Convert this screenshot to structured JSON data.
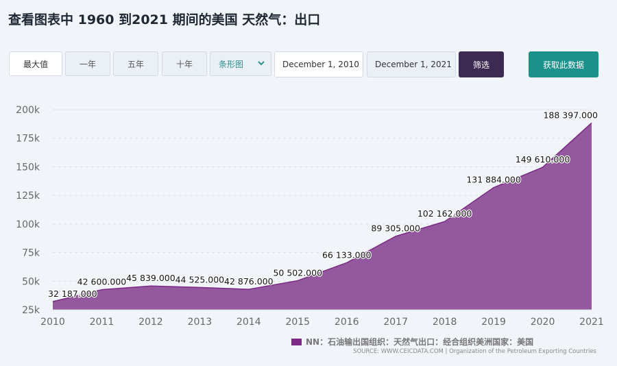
{
  "header": {
    "title": "查看图表中 1960 到2021 期间的美国 天然气：出口"
  },
  "toolbar": {
    "range_buttons": [
      "最大值",
      "一年",
      "五年",
      "十年"
    ],
    "chart_type": "条形图",
    "start_date": "December 1, 2010",
    "end_date": "December 1, 2021",
    "filter_label": "筛选",
    "get_data_label": "获取此数据"
  },
  "colors": {
    "area": "#8e4f99",
    "area_line": "#7b2a86",
    "filter_button": "#3c2a52",
    "get_data_button": "#1b918b"
  },
  "legend": {
    "label": "NN：石油输出国组织：天然气出口：经合组织美洲国家：美国"
  },
  "source": "SOURCE: WWW.CEICDATA.COM | Organization of the Petroleum Exporting Countries",
  "chart_data": {
    "type": "area",
    "x": [
      "2010",
      "2011",
      "2012",
      "2013",
      "2014",
      "2015",
      "2016",
      "2017",
      "2018",
      "2019",
      "2020",
      "2021"
    ],
    "values": [
      32187,
      42600,
      45839,
      44525,
      42876,
      50502,
      66133,
      89305,
      102162,
      131884,
      149610,
      188397
    ],
    "data_labels": [
      "32 187.000",
      "42 600.000",
      "45 839.000",
      "44 525.000",
      "42 876.000",
      "50 502.000",
      "66 133.000",
      "89 305.000",
      "102 162.000",
      "131 884.000",
      "149 610.000",
      "188 397.000"
    ],
    "yticks": [
      25000,
      50000,
      75000,
      100000,
      125000,
      150000,
      175000,
      200000
    ],
    "ytick_labels": [
      "25k",
      "50k",
      "75k",
      "100k",
      "125k",
      "150k",
      "175k",
      "200k"
    ],
    "ylim": [
      25000,
      200000
    ],
    "grid": true,
    "legend_position": "bottom-right"
  }
}
